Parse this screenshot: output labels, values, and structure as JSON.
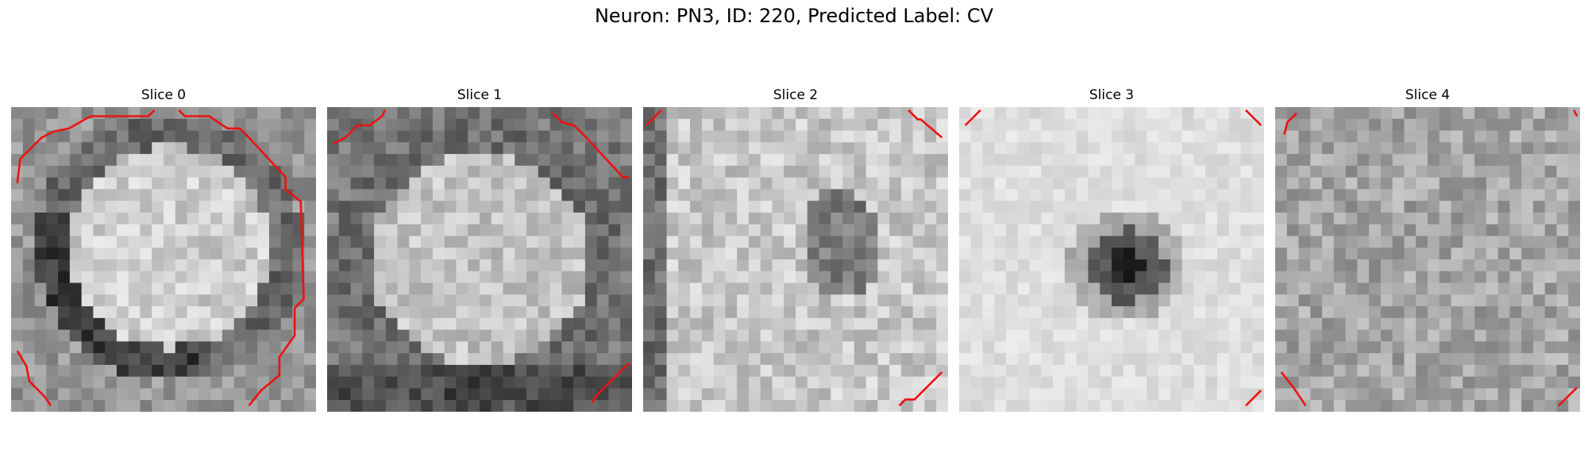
{
  "figure": {
    "title": "Neuron: PN3, ID: 220, Predicted Label: CV",
    "colormap": "gray",
    "contour_color": "#ee1111",
    "panels": [
      {
        "title": "Slice 0",
        "grid": 26,
        "seed": 11,
        "base": 150,
        "noise": 30
      },
      {
        "title": "Slice 1",
        "grid": 26,
        "seed": 23,
        "base": 150,
        "noise": 30
      },
      {
        "title": "Slice 2",
        "grid": 26,
        "seed": 37,
        "base": 190,
        "noise": 32
      },
      {
        "title": "Slice 3",
        "grid": 26,
        "seed": 41,
        "base": 215,
        "noise": 14
      },
      {
        "title": "Slice 4",
        "grid": 26,
        "seed": 53,
        "base": 165,
        "noise": 34
      }
    ]
  }
}
